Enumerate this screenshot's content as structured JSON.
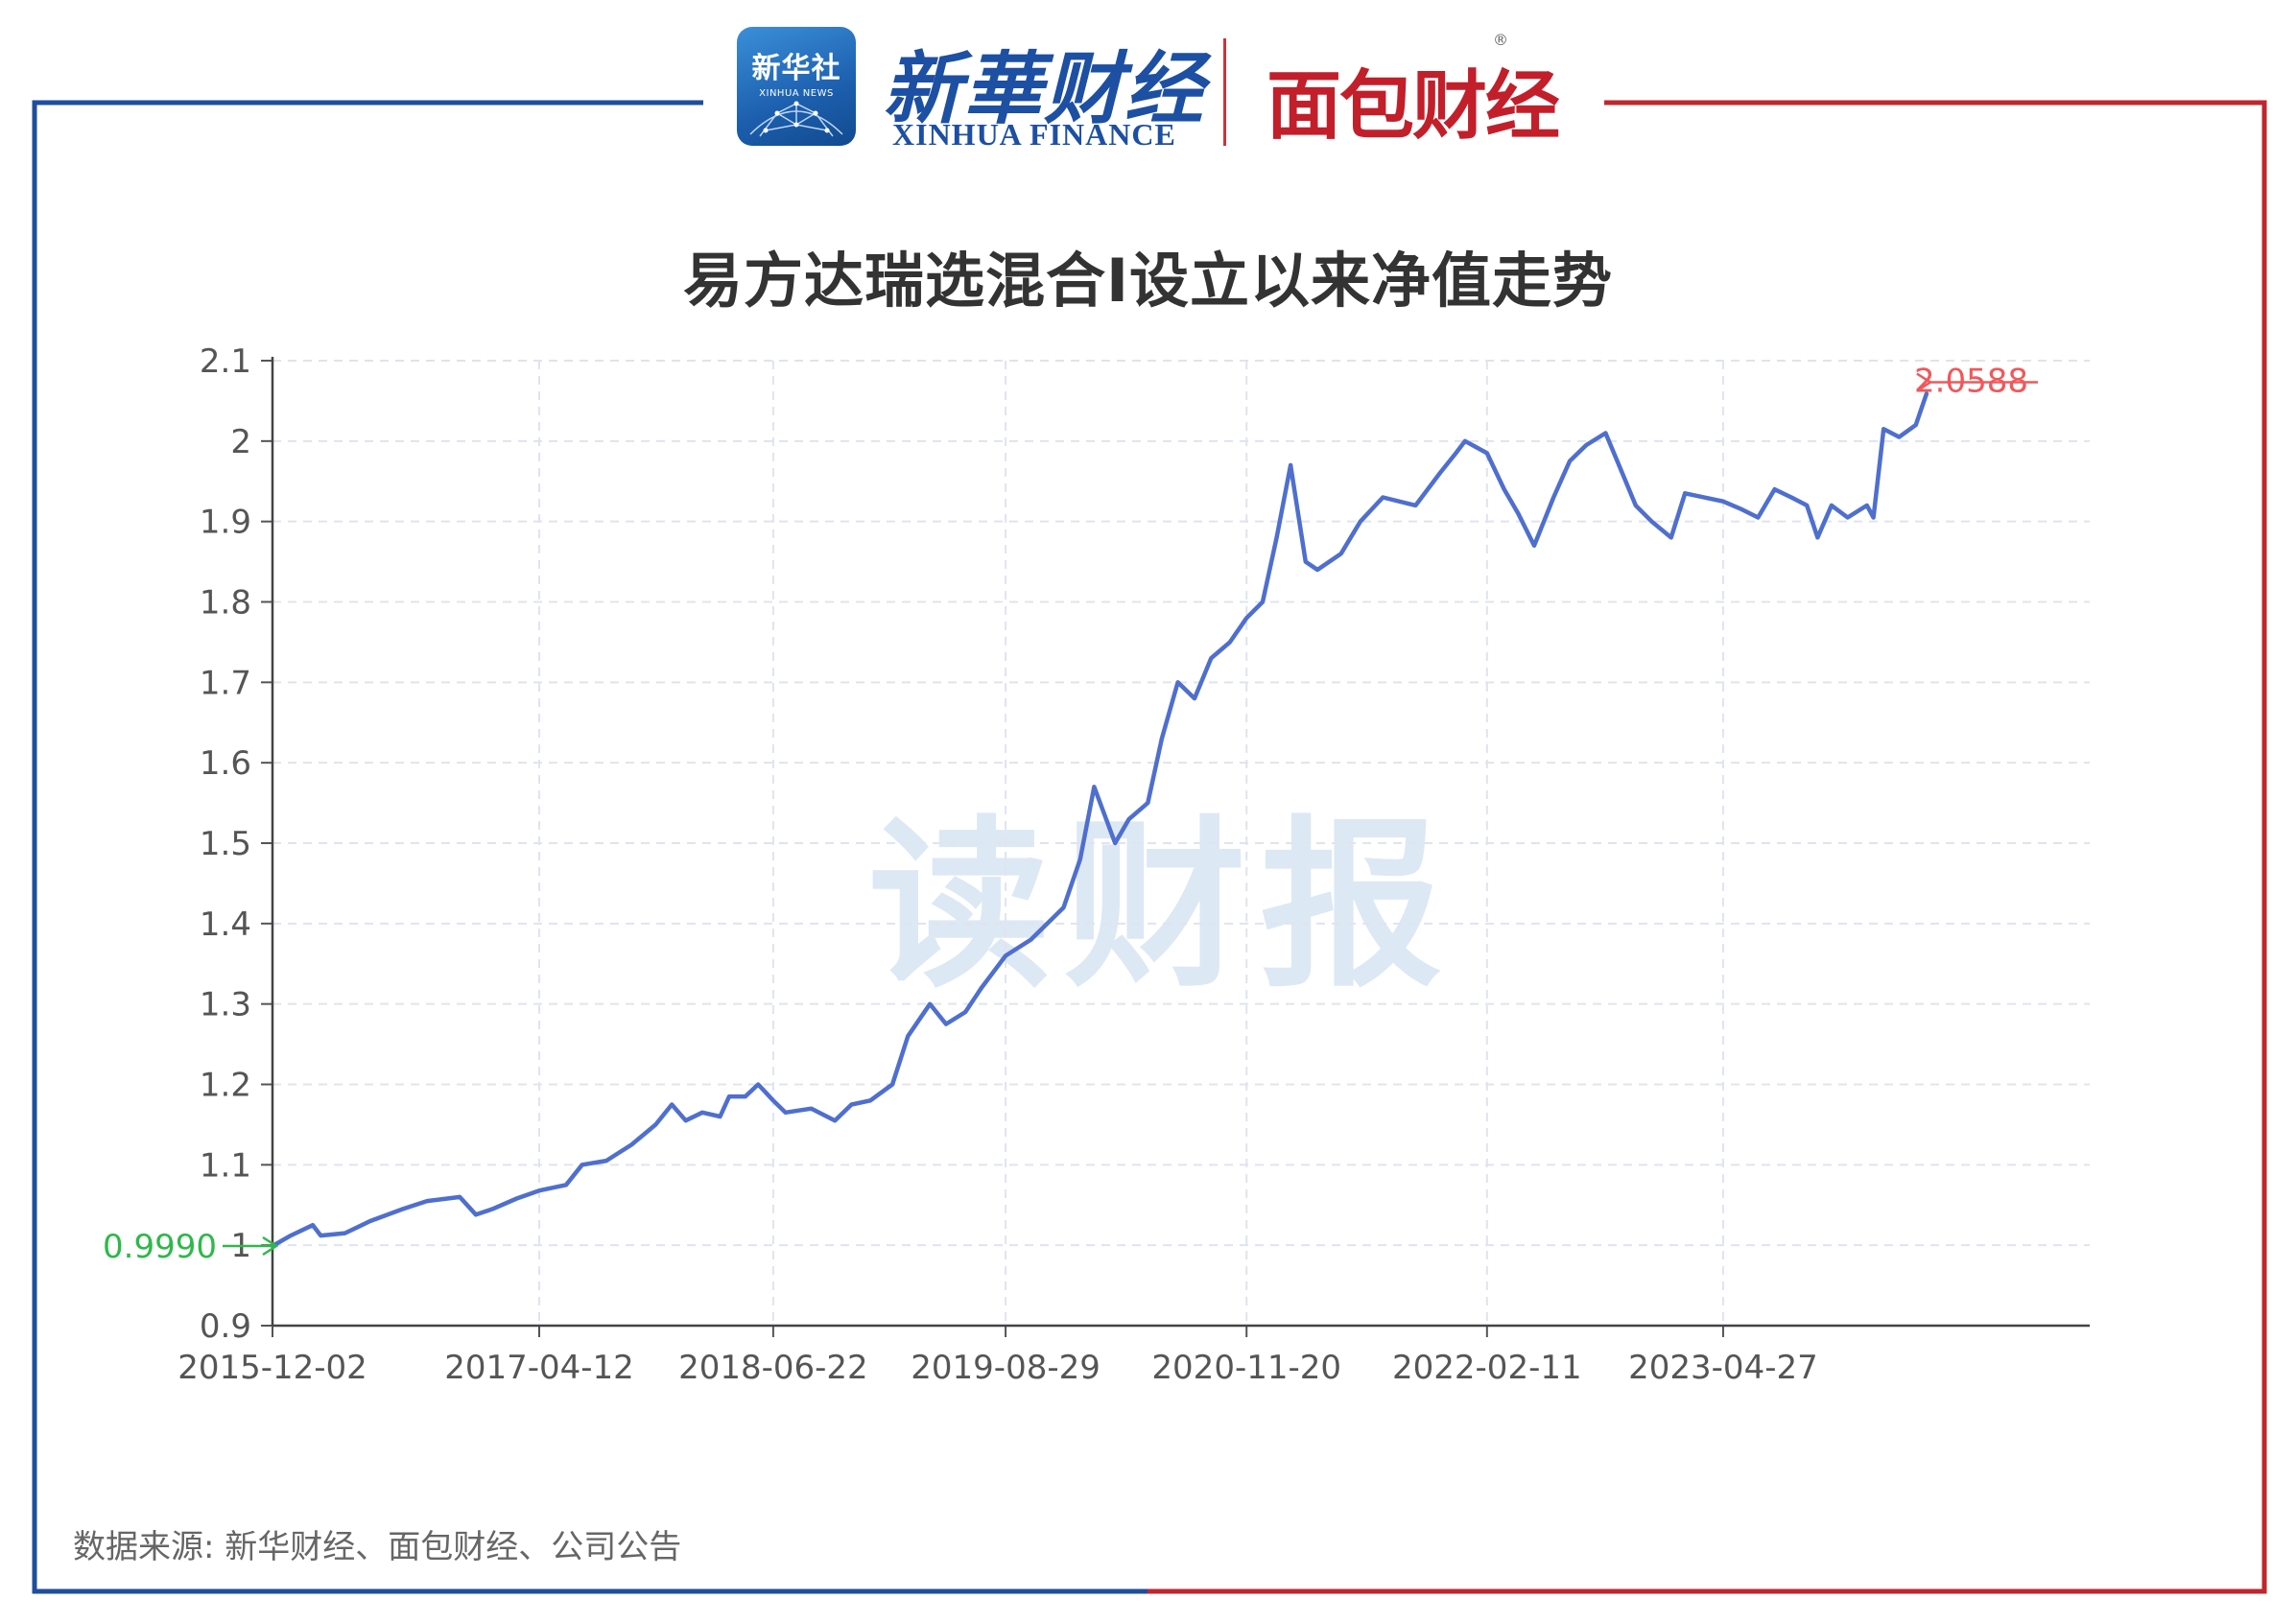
{
  "header": {
    "badge_text": "新华社",
    "badge_sub": "XINHUA NEWS",
    "brand_cn": "新華财经",
    "brand_en": "XINHUA FINANCE",
    "brand2": "面包财经",
    "reg_mark": "®"
  },
  "watermark": "读财报",
  "source": "数据来源: 新华财经、面包财经、公司公告",
  "colors": {
    "line": "#4f6fcf",
    "start_marker": "#2fb84a",
    "end_marker": "#f0585a",
    "frame_left": "#1f4e9c",
    "frame_right": "#c0262d"
  },
  "chart_data": {
    "type": "line",
    "title": "易方达瑞选混合I设立以来净值走势",
    "xlabel": "",
    "ylabel": "",
    "ylim": [
      0.9,
      2.1
    ],
    "yticks": [
      "0.9",
      "1",
      "1.1",
      "1.2",
      "1.3",
      "1.4",
      "1.5",
      "1.6",
      "1.7",
      "1.8",
      "1.9",
      "2",
      "2.1"
    ],
    "xticks": [
      "2015-12-02",
      "2017-04-12",
      "2018-06-22",
      "2019-08-29",
      "2020-11-20",
      "2022-02-11",
      "2023-04-27"
    ],
    "grid": true,
    "start_label": "0.9990",
    "end_label": "2.0588",
    "series": [
      {
        "points": [
          [
            "2015-12-02",
            0.999
          ],
          [
            "2016-01-05",
            1.012
          ],
          [
            "2016-02-15",
            1.025
          ],
          [
            "2016-03-01",
            1.012
          ],
          [
            "2016-04-15",
            1.015
          ],
          [
            "2016-06-01",
            1.03
          ],
          [
            "2016-08-01",
            1.045
          ],
          [
            "2016-09-15",
            1.055
          ],
          [
            "2016-11-15",
            1.06
          ],
          [
            "2016-12-15",
            1.038
          ],
          [
            "2017-01-15",
            1.045
          ],
          [
            "2017-03-01",
            1.058
          ],
          [
            "2017-04-12",
            1.068
          ],
          [
            "2017-06-01",
            1.075
          ],
          [
            "2017-07-01",
            1.1
          ],
          [
            "2017-08-15",
            1.105
          ],
          [
            "2017-10-01",
            1.125
          ],
          [
            "2017-11-15",
            1.15
          ],
          [
            "2017-12-15",
            1.175
          ],
          [
            "2018-01-10",
            1.155
          ],
          [
            "2018-02-10",
            1.165
          ],
          [
            "2018-03-15",
            1.16
          ],
          [
            "2018-04-01",
            1.185
          ],
          [
            "2018-05-01",
            1.185
          ],
          [
            "2018-05-25",
            1.2
          ],
          [
            "2018-06-22",
            1.18
          ],
          [
            "2018-07-15",
            1.165
          ],
          [
            "2018-09-01",
            1.17
          ],
          [
            "2018-10-15",
            1.155
          ],
          [
            "2018-11-15",
            1.175
          ],
          [
            "2018-12-20",
            1.18
          ],
          [
            "2019-01-30",
            1.2
          ],
          [
            "2019-02-28",
            1.26
          ],
          [
            "2019-04-10",
            1.3
          ],
          [
            "2019-05-10",
            1.275
          ],
          [
            "2019-06-15",
            1.29
          ],
          [
            "2019-07-15",
            1.32
          ],
          [
            "2019-08-29",
            1.36
          ],
          [
            "2019-10-15",
            1.38
          ],
          [
            "2019-12-15",
            1.42
          ],
          [
            "2020-01-15",
            1.48
          ],
          [
            "2020-02-10",
            1.57
          ],
          [
            "2020-03-20",
            1.5
          ],
          [
            "2020-04-15",
            1.53
          ],
          [
            "2020-05-20",
            1.55
          ],
          [
            "2020-06-15",
            1.63
          ],
          [
            "2020-07-15",
            1.7
          ],
          [
            "2020-08-15",
            1.68
          ],
          [
            "2020-09-15",
            1.73
          ],
          [
            "2020-10-20",
            1.75
          ],
          [
            "2020-11-20",
            1.78
          ],
          [
            "2020-12-20",
            1.8
          ],
          [
            "2021-01-15",
            1.88
          ],
          [
            "2021-02-10",
            1.97
          ],
          [
            "2021-03-10",
            1.85
          ],
          [
            "2021-04-01",
            1.84
          ],
          [
            "2021-05-15",
            1.86
          ],
          [
            "2021-06-20",
            1.9
          ],
          [
            "2021-08-01",
            1.93
          ],
          [
            "2021-10-01",
            1.92
          ],
          [
            "2021-11-15",
            1.96
          ],
          [
            "2021-12-15",
            1.985
          ],
          [
            "2022-01-01",
            2.0
          ],
          [
            "2022-02-11",
            1.985
          ],
          [
            "2022-03-15",
            1.94
          ],
          [
            "2022-04-10",
            1.91
          ],
          [
            "2022-05-10",
            1.87
          ],
          [
            "2022-06-15",
            1.93
          ],
          [
            "2022-07-15",
            1.975
          ],
          [
            "2022-08-15",
            1.995
          ],
          [
            "2022-09-20",
            2.01
          ],
          [
            "2022-10-15",
            1.97
          ],
          [
            "2022-11-15",
            1.92
          ],
          [
            "2022-12-15",
            1.9
          ],
          [
            "2023-01-20",
            1.88
          ],
          [
            "2023-02-15",
            1.935
          ],
          [
            "2023-04-27",
            1.925
          ],
          [
            "2023-06-01",
            1.915
          ],
          [
            "2023-07-01",
            1.905
          ],
          [
            "2023-08-01",
            1.94
          ],
          [
            "2023-09-01",
            1.93
          ],
          [
            "2023-09-30",
            1.92
          ],
          [
            "2023-10-20",
            1.88
          ],
          [
            "2023-11-15",
            1.92
          ],
          [
            "2023-12-15",
            1.905
          ],
          [
            "2024-01-20",
            1.92
          ],
          [
            "2024-02-01",
            1.905
          ],
          [
            "2024-02-20",
            2.015
          ],
          [
            "2024-03-20",
            2.005
          ],
          [
            "2024-04-20",
            2.02
          ],
          [
            "2024-05-10",
            2.0588
          ]
        ]
      }
    ]
  }
}
